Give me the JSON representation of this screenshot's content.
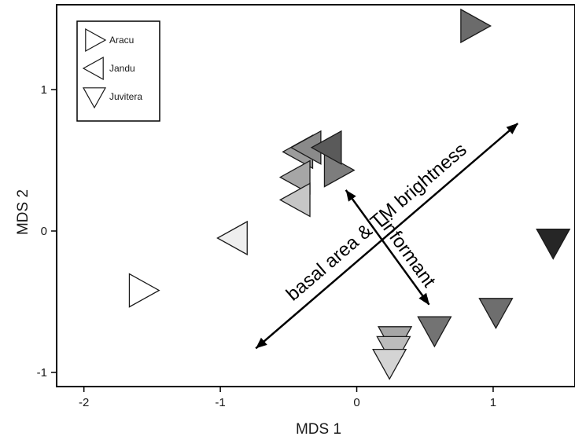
{
  "chart_data": {
    "type": "scatter",
    "title": "",
    "xlabel": "MDS 1",
    "ylabel": "MDS 2",
    "xlim": [
      -2.2,
      1.6
    ],
    "ylim": [
      -1.1,
      1.6
    ],
    "xticks": [
      "-2",
      "-1",
      "0",
      "1"
    ],
    "xtick_values": [
      -2,
      -1,
      0,
      1
    ],
    "yticks": [
      "1",
      "0",
      "-1"
    ],
    "ytick_values": [
      1,
      0,
      -1
    ],
    "grid": false,
    "legend_position": "top-left",
    "legend": [
      {
        "name": "Aracu",
        "marker": "triangle-right"
      },
      {
        "name": "Jandu",
        "marker": "triangle-left"
      },
      {
        "name": "Juvitera",
        "marker": "triangle-down"
      }
    ],
    "series": [
      {
        "name": "Aracu",
        "marker": "triangle-right",
        "points": [
          {
            "x": -1.57,
            "y": -0.42,
            "fill": "#ffffff"
          },
          {
            "x": 0.86,
            "y": 1.45,
            "fill": "#6b6b6b"
          },
          {
            "x": -0.14,
            "y": 0.43,
            "fill": "#7d7d7d"
          }
        ]
      },
      {
        "name": "Jandu",
        "marker": "triangle-left",
        "points": [
          {
            "x": -0.9,
            "y": -0.05,
            "fill": "#eeeeee"
          },
          {
            "x": -0.42,
            "y": 0.56,
            "fill": "#9c9c9c"
          },
          {
            "x": -0.36,
            "y": 0.59,
            "fill": "#8a8a8a"
          },
          {
            "x": -0.21,
            "y": 0.59,
            "fill": "#5a5a5a"
          },
          {
            "x": -0.44,
            "y": 0.38,
            "fill": "#a6a6a6"
          },
          {
            "x": -0.44,
            "y": 0.22,
            "fill": "#c6c6c6"
          }
        ]
      },
      {
        "name": "Juvitera",
        "marker": "triangle-down",
        "points": [
          {
            "x": 1.44,
            "y": -0.08,
            "fill": "#262626"
          },
          {
            "x": 1.02,
            "y": -0.57,
            "fill": "#6e6e6e"
          },
          {
            "x": 0.57,
            "y": -0.7,
            "fill": "#737373"
          },
          {
            "x": 0.28,
            "y": -0.77,
            "fill": "#a6a6a6"
          },
          {
            "x": 0.27,
            "y": -0.84,
            "fill": "#bcbcbc"
          },
          {
            "x": 0.24,
            "y": -0.93,
            "fill": "#d4d4d4"
          }
        ]
      }
    ],
    "vectors": [
      {
        "label": "basal area & TM brightness",
        "x1": -0.74,
        "y1": -0.83,
        "x2": 1.18,
        "y2": 0.76
      },
      {
        "label": "informant",
        "x1": -0.08,
        "y1": 0.29,
        "x2": 0.53,
        "y2": -0.52
      }
    ]
  }
}
